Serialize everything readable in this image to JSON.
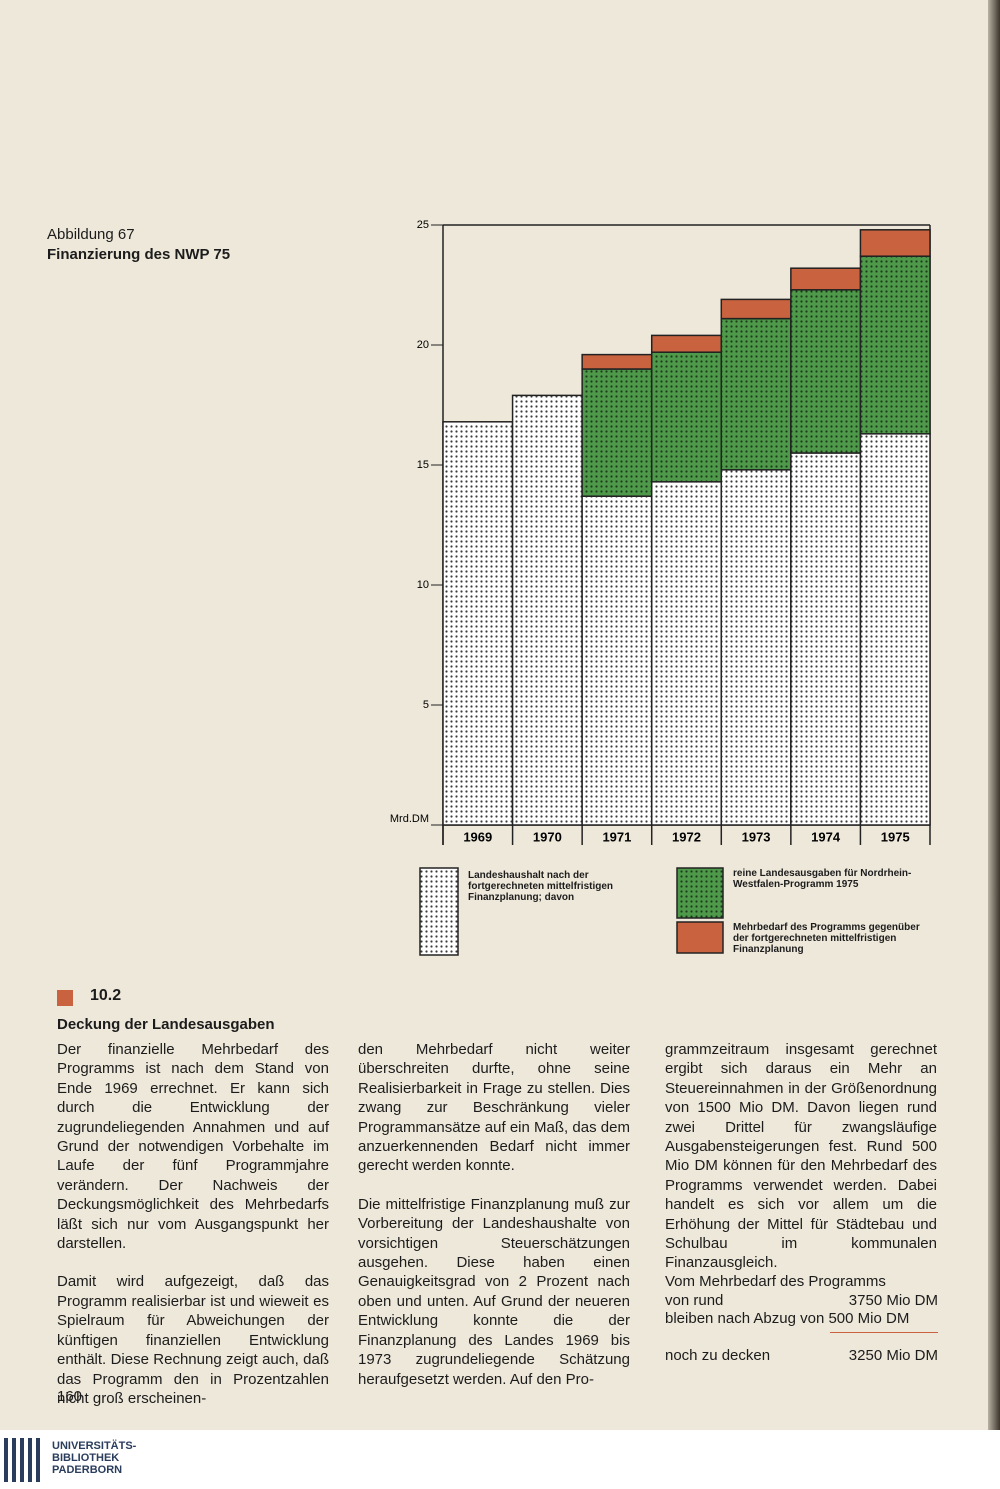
{
  "figure": {
    "number": "Abbildung 67",
    "caption": "Finanzierung des NWP 75"
  },
  "chart_data": {
    "type": "stacked_bar",
    "categories": [
      "1969",
      "1970",
      "1971",
      "1972",
      "1973",
      "1974",
      "1975"
    ],
    "series": [
      {
        "name": "Landeshaushalt nach der fortgerechneten mittelfristigen Finanzplanung; davon",
        "color": "#ffffff",
        "values": [
          16.8,
          17.9,
          13.7,
          14.3,
          14.8,
          15.5,
          16.3
        ]
      },
      {
        "name": "reine Landesausgaben für Nordrhein-Westfalen-Programm 1975",
        "color": "#4e9a4a",
        "values": [
          null,
          null,
          5.3,
          5.4,
          6.3,
          6.8,
          7.4
        ]
      },
      {
        "name": "Mehrbedarf des Programms gegenüber der fortgerechneten mittelfristigen Finanzplanung",
        "color": "#c9623f",
        "values": [
          null,
          null,
          0.6,
          0.7,
          0.8,
          0.9,
          1.1
        ]
      }
    ],
    "ylim": [
      0,
      25
    ],
    "yticks": [
      {
        "value": 0,
        "label": "Mrd.DM"
      },
      5,
      10,
      15,
      20,
      25
    ]
  },
  "section": {
    "number": "10.2",
    "title": "Deckung der Landesausgaben"
  },
  "columns": [
    [
      "Der finanzielle Mehrbedarf des Programms ist nach dem Stand von Ende 1969 errechnet. Er kann sich durch die Entwicklung der zugrundeliegenden Annahmen und auf Grund der notwendigen Vorbehalte im Laufe der fünf Programmjahre verändern. Der Nachweis der Deckungsmöglichkeit des Mehrbedarfs läßt sich nur vom Ausgangspunkt her darstellen.",
      "Damit wird aufgezeigt, daß das Programm realisierbar ist und wieweit es Spielraum für Abweichungen der künftigen finanziellen Entwicklung enthält. Diese Rechnung zeigt auch, daß das Programm den in Prozentzahlen nicht groß erscheinen-"
    ],
    [
      "den Mehrbedarf nicht weiter überschreiten durfte, ohne seine Realisierbarkeit in Frage zu stellen. Dies zwang zur Beschränkung vieler Programmansätze auf ein Maß, das dem anzuerkennenden Bedarf nicht immer gerecht werden konnte.",
      "Die mittelfristige Finanzplanung muß zur Vorbereitung der Landeshaushalte von vorsichtigen Steuerschätzungen ausgehen. Diese haben einen Genauigkeitsgrad von 2 Prozent nach oben und unten. Auf Grund der neueren Entwicklung konnte die der Finanzplanung des Landes 1969 bis 1973 zugrundeliegende Schätzung heraufgesetzt werden. Auf den Pro-"
    ],
    [
      "grammzeitraum insgesamt gerechnet ergibt sich daraus ein Mehr an Steuereinnahmen in der Größenordnung von 1500 Mio DM. Davon liegen rund zwei Drittel für zwangsläufige Ausgabensteigerungen fest. Rund 500 Mio DM können für den Mehrbedarf des Programms verwendet werden. Dabei handelt es sich vor allem um die Erhöhung der Mittel für Städtebau und Schulbau im kommunalen Finanzausgleich."
    ]
  ],
  "calculation": {
    "line1": "Vom Mehrbedarf des Programms",
    "line2_label": "von rund",
    "line2_value": "3750 Mio DM",
    "line3": "bleiben nach Abzug von 500 Mio DM",
    "result_label": "noch zu decken",
    "result_value": "3250 Mio DM"
  },
  "page_number": "160",
  "footer_logo": [
    "UNIVERSITÄTS-",
    "BIBLIOTHEK",
    "PADERBORN"
  ]
}
